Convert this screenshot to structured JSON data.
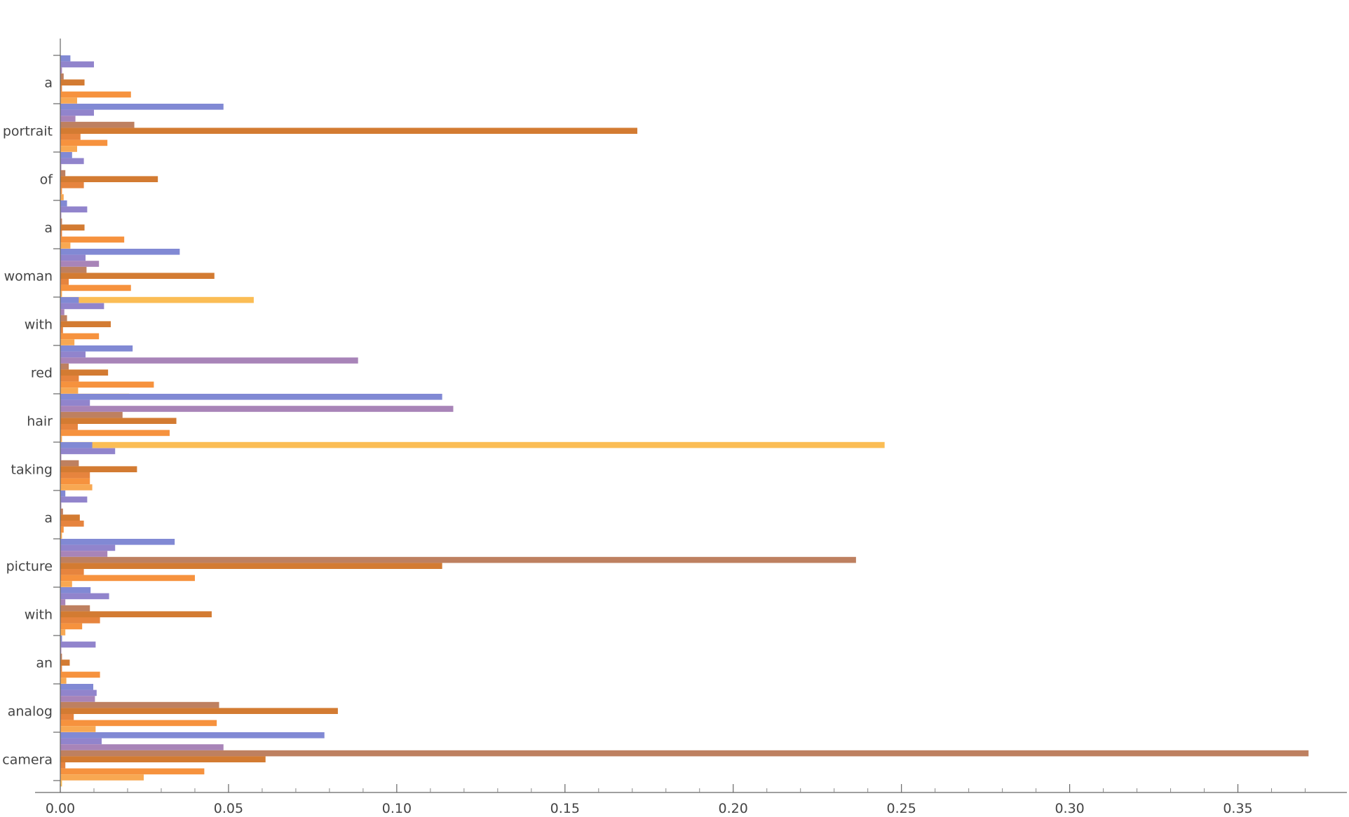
{
  "chart_data": {
    "type": "bar",
    "orientation": "horizontal",
    "categories": [
      "a",
      "portrait",
      "of",
      "a",
      "woman",
      "with",
      "red",
      "hair",
      "taking",
      "a",
      "picture",
      "with",
      "an",
      "analog",
      "camera"
    ],
    "x_ticks": [
      "0.00",
      "0.05",
      "0.10",
      "0.15",
      "0.20",
      "0.25",
      "0.30",
      "0.35"
    ],
    "xlim": [
      0,
      0.375
    ],
    "grid": false,
    "legend": "none",
    "series": [
      {
        "color": "#8189d4",
        "values": [
          0.003,
          0.0485,
          0.0035,
          0.002,
          0.0355,
          0.0055,
          0.0215,
          0.1135,
          0.0095,
          0.0015,
          0.034,
          0.009,
          0.0005,
          0.0098,
          0.0785
        ]
      },
      {
        "color": "#9184cc",
        "values": [
          0.01,
          0.01,
          0.007,
          0.008,
          0.0075,
          0.013,
          0.0075,
          0.0088,
          0.0163,
          0.008,
          0.0163,
          0.0145,
          0.0105,
          0.0108,
          0.0123
        ]
      },
      {
        "color": "#a884b8",
        "values": [
          0.0005,
          0.0045,
          0.0003,
          0.0003,
          0.0115,
          0.0012,
          0.0885,
          0.1168,
          0.0003,
          0.0003,
          0.014,
          0.0015,
          0.0003,
          0.0103,
          0.0485
        ]
      },
      {
        "color": "#be8060",
        "values": [
          0.001,
          0.022,
          0.0015,
          0.0005,
          0.0078,
          0.002,
          0.0025,
          0.0185,
          0.0055,
          0.0008,
          0.2365,
          0.0088,
          0.0005,
          0.0472,
          0.371
        ]
      },
      {
        "color": "#d37b32",
        "values": [
          0.0072,
          0.1715,
          0.029,
          0.0072,
          0.0458,
          0.015,
          0.0142,
          0.0345,
          0.0228,
          0.0058,
          0.1135,
          0.045,
          0.0028,
          0.0825,
          0.061
        ]
      },
      {
        "color": "#e6843e",
        "values": [
          0.0005,
          0.006,
          0.007,
          0.0005,
          0.0025,
          0.0008,
          0.0055,
          0.0052,
          0.0088,
          0.007,
          0.007,
          0.0118,
          0.0005,
          0.004,
          0.0015
        ]
      },
      {
        "color": "#f6923e",
        "values": [
          0.021,
          0.014,
          0.0005,
          0.019,
          0.021,
          0.0115,
          0.0278,
          0.0325,
          0.0088,
          0.001,
          0.04,
          0.0065,
          0.0118,
          0.0465,
          0.0428
        ]
      },
      {
        "color": "#f8a852",
        "values": [
          0.005,
          0.005,
          0.001,
          0.003,
          0.0005,
          0.0042,
          0.0053,
          0.0005,
          0.0095,
          0.0005,
          0.0035,
          0.0015,
          0.0018,
          0.0105,
          0.0248
        ]
      },
      {
        "color": "#fbbd55",
        "values": [
          0.0005,
          0.0005,
          0.001,
          0.0005,
          0.0575,
          0.0025,
          0.0205,
          0.245,
          0.0012,
          0.0005,
          0.0005,
          0.0005,
          0.0005,
          0.0005,
          0.0005
        ]
      }
    ]
  }
}
